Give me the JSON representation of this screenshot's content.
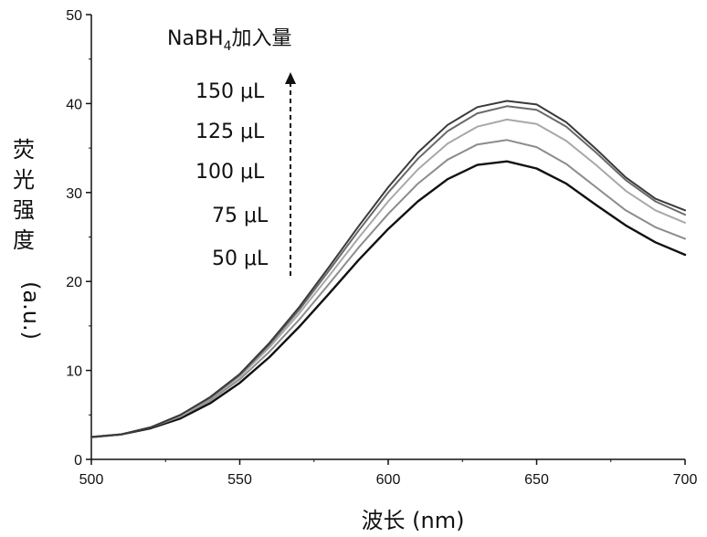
{
  "chart_data": {
    "type": "line",
    "title": "",
    "xlabel": "波长 (nm)",
    "ylabel_chars": [
      "荧",
      "光",
      "强",
      "度"
    ],
    "ylabel_unit": "(a.u.)",
    "xlim": [
      500,
      700
    ],
    "ylim": [
      0,
      50
    ],
    "xticks": [
      "500",
      "550",
      "600",
      "650",
      "700"
    ],
    "yticks": [
      "0",
      "10",
      "20",
      "30",
      "40",
      "50"
    ],
    "grid": false,
    "legend": {
      "title_main": "NaBH",
      "title_sub": "4",
      "title_rest": "加入量",
      "placement": "top-left",
      "entries": [
        "150 μL",
        "125 μL",
        "100 μL",
        "75 μL",
        "50 μL"
      ]
    },
    "x": [
      500,
      510,
      520,
      530,
      540,
      550,
      560,
      570,
      580,
      590,
      600,
      610,
      620,
      630,
      640,
      650,
      660,
      670,
      680,
      690,
      700
    ],
    "series": [
      {
        "label": "50 μL",
        "color": "#111111",
        "values": [
          2.5,
          2.8,
          3.5,
          4.6,
          6.3,
          8.6,
          11.5,
          14.9,
          18.6,
          22.4,
          25.9,
          29.0,
          31.5,
          33.1,
          33.5,
          32.7,
          31.0,
          28.6,
          26.3,
          24.4,
          23.0
        ]
      },
      {
        "label": "75 μL",
        "color": "#8c8c8c",
        "values": [
          2.5,
          2.8,
          3.6,
          4.8,
          6.6,
          9.0,
          12.1,
          15.7,
          19.7,
          23.8,
          27.6,
          31.0,
          33.7,
          35.4,
          35.9,
          35.1,
          33.2,
          30.6,
          28.0,
          26.1,
          24.8
        ]
      },
      {
        "label": "100 μL",
        "color": "#a8a8a8",
        "values": [
          2.5,
          2.8,
          3.6,
          4.9,
          6.8,
          9.3,
          12.6,
          16.4,
          20.6,
          24.9,
          29.0,
          32.6,
          35.5,
          37.4,
          38.2,
          37.7,
          35.8,
          33.1,
          30.2,
          28.0,
          26.6
        ]
      },
      {
        "label": "125 μL",
        "color": "#6a6a6a",
        "values": [
          2.5,
          2.8,
          3.6,
          5.0,
          6.9,
          9.5,
          12.9,
          16.8,
          21.2,
          25.7,
          30.0,
          33.8,
          36.9,
          38.9,
          39.7,
          39.3,
          37.4,
          34.5,
          31.4,
          29.0,
          27.5
        ]
      },
      {
        "label": "150 μL",
        "color": "#3a3a3a",
        "values": [
          2.5,
          2.8,
          3.6,
          5.0,
          7.0,
          9.6,
          13.1,
          17.1,
          21.6,
          26.2,
          30.6,
          34.5,
          37.6,
          39.6,
          40.3,
          39.9,
          37.9,
          34.9,
          31.7,
          29.3,
          28.0
        ]
      }
    ]
  }
}
